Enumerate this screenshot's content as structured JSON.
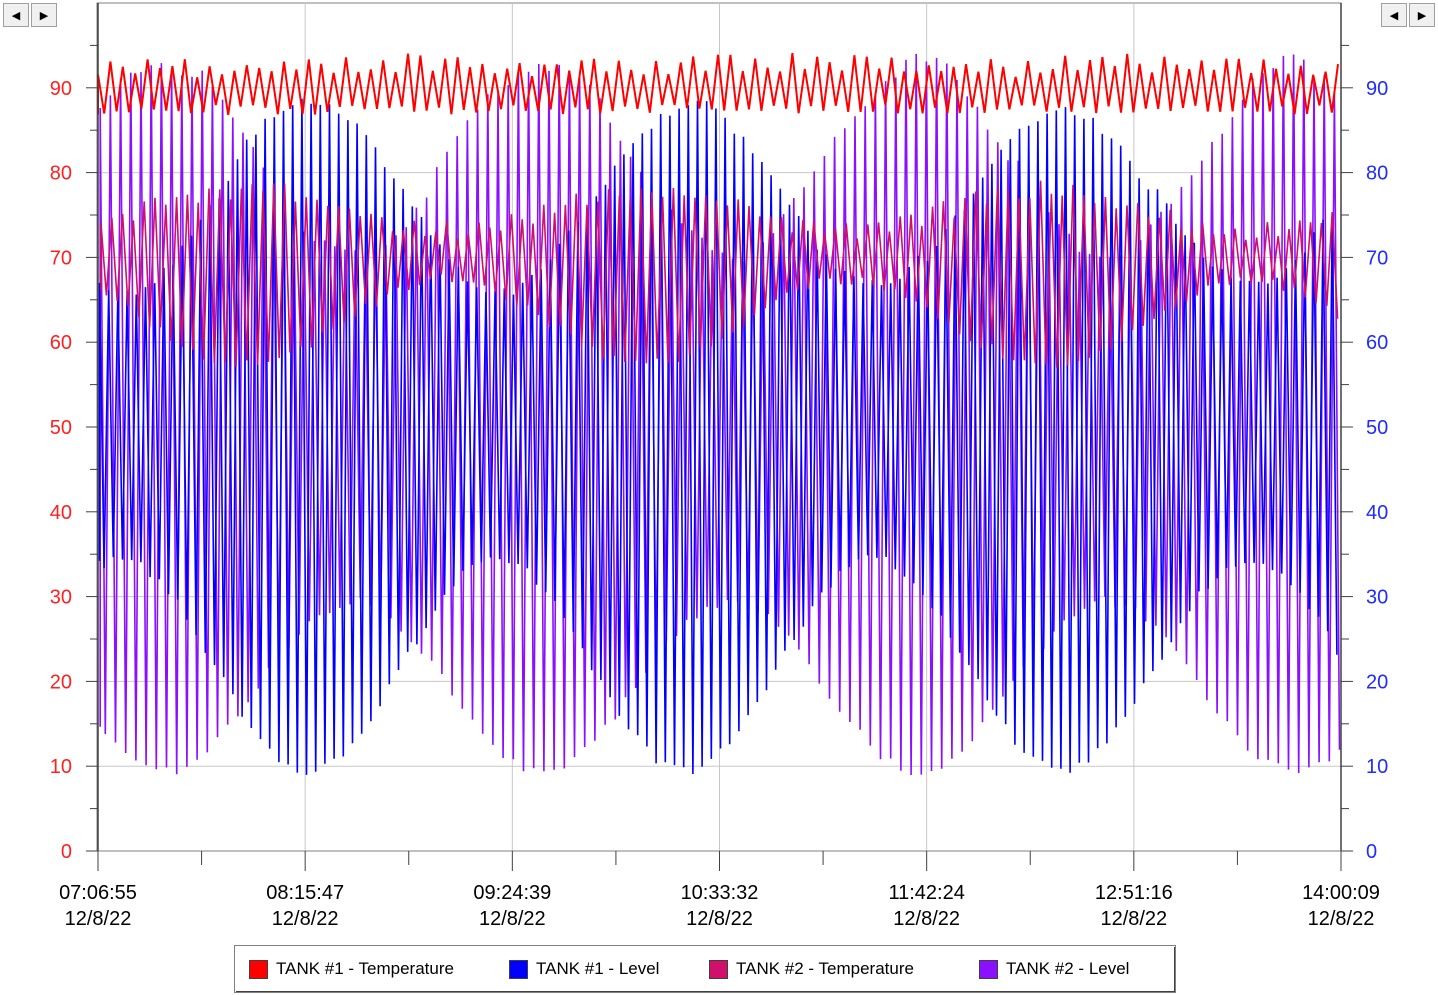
{
  "chart_data": {
    "type": "line",
    "y_axis_left": {
      "ticks": [
        0,
        10,
        20,
        30,
        40,
        50,
        60,
        70,
        80,
        90
      ],
      "ylim": [
        0,
        100
      ],
      "color": "#ff2020"
    },
    "y_axis_right": {
      "ticks": [
        0,
        10,
        20,
        30,
        40,
        50,
        60,
        70,
        80,
        90
      ],
      "ylim": [
        0,
        100
      ],
      "color": "#1f2cff"
    },
    "x_ticks": [
      {
        "time": "07:06:55",
        "date": "12/8/22"
      },
      {
        "time": "08:15:47",
        "date": "12/8/22"
      },
      {
        "time": "09:24:39",
        "date": "12/8/22"
      },
      {
        "time": "10:33:32",
        "date": "12/8/22"
      },
      {
        "time": "11:42:24",
        "date": "12/8/22"
      },
      {
        "time": "12:51:16",
        "date": "12/8/22"
      },
      {
        "time": "14:00:09",
        "date": "12/8/22"
      }
    ],
    "grid": true,
    "legend_position": "bottom",
    "series": [
      {
        "name": "TANK #1 - Temperature",
        "color": "#ff0000",
        "band_low": [
          88,
          88
        ],
        "band_high": [
          92,
          93
        ]
      },
      {
        "name": "TANK #1 - Level",
        "color": "#0000ff",
        "band_low": [
          10,
          35
        ],
        "band_high": [
          52,
          88
        ]
      },
      {
        "name": "TANK #2 - Temperature",
        "color": "#d0106a",
        "band_low": [
          58,
          68
        ],
        "band_high": [
          70,
          78
        ]
      },
      {
        "name": "TANK #2 - Level",
        "color": "#8a10ff",
        "band_low": [
          10,
          30
        ],
        "band_high": [
          55,
          93
        ]
      }
    ]
  },
  "legend": {
    "items": [
      {
        "label": "TANK #1 - Temperature",
        "color": "#ff0000"
      },
      {
        "label": "TANK #1 - Level",
        "color": "#0000ff"
      },
      {
        "label": "TANK #2 - Temperature",
        "color": "#d0106a"
      },
      {
        "label": "TANK #2 - Level",
        "color": "#8a10ff"
      }
    ]
  },
  "scroll_buttons": {
    "left_arrow": "◀",
    "right_arrow": "▶"
  }
}
